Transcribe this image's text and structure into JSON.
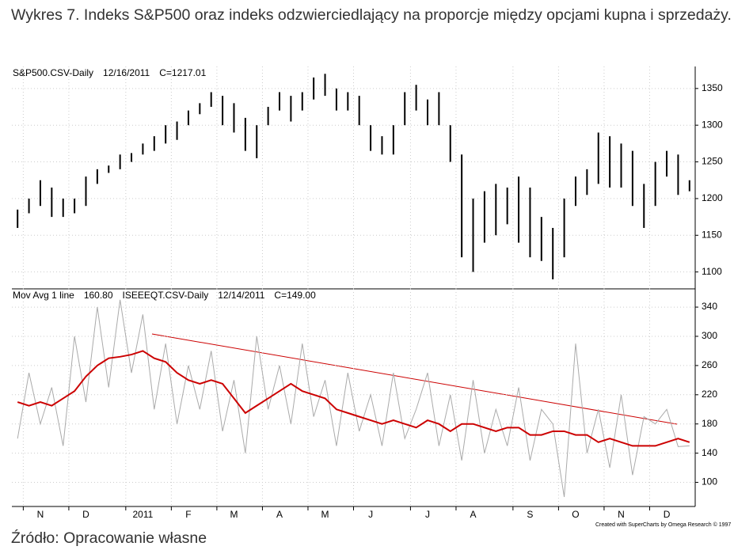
{
  "title": "Wykres 7. Indeks S&P500 oraz indeks odzwierciedlający na proporcje między opcjami kupna i sprzedaży.",
  "source": "Źródło: Opracowanie własne",
  "credit": "Created with SuperCharts by Omega Research © 1997",
  "chart_data": [
    {
      "type": "hilo",
      "label": "S&P500.CSV-Daily",
      "date": "12/16/2011",
      "last": "C=1217.01",
      "color": "#000000",
      "high": [
        1185,
        1200,
        1225,
        1215,
        1200,
        1200,
        1230,
        1240,
        1245,
        1260,
        1262,
        1275,
        1285,
        1300,
        1305,
        1320,
        1330,
        1345,
        1340,
        1330,
        1310,
        1300,
        1325,
        1345,
        1340,
        1345,
        1365,
        1370,
        1350,
        1345,
        1340,
        1300,
        1285,
        1300,
        1345,
        1355,
        1335,
        1345,
        1300,
        1260,
        1200,
        1210,
        1220,
        1215,
        1230,
        1215,
        1175,
        1160,
        1200,
        1230,
        1240,
        1290,
        1285,
        1275,
        1265,
        1220,
        1250,
        1265,
        1260,
        1225
      ],
      "low": [
        1160,
        1180,
        1190,
        1175,
        1175,
        1180,
        1190,
        1220,
        1235,
        1240,
        1250,
        1260,
        1265,
        1275,
        1280,
        1300,
        1315,
        1325,
        1300,
        1290,
        1265,
        1255,
        1300,
        1320,
        1305,
        1320,
        1335,
        1340,
        1320,
        1320,
        1300,
        1265,
        1260,
        1260,
        1300,
        1320,
        1300,
        1300,
        1250,
        1120,
        1100,
        1140,
        1150,
        1165,
        1140,
        1120,
        1115,
        1090,
        1120,
        1190,
        1205,
        1220,
        1215,
        1215,
        1190,
        1160,
        1190,
        1230,
        1205,
        1210
      ],
      "ylim": [
        1077,
        1380
      ],
      "yticks": [
        1100,
        1150,
        1200,
        1250,
        1300,
        1350
      ],
      "grid": true
    },
    {
      "type": "line",
      "label": "ISEEEQT.CSV-Daily",
      "date": "12/14/2011",
      "last": "C=149.00",
      "ma_label": "Mov Avg 1 line",
      "ma_last": "160.80",
      "categories": [
        null,
        null,
        "N",
        null,
        null,
        null,
        "D",
        null,
        null,
        null,
        null,
        "2011",
        null,
        null,
        null,
        "F",
        null,
        null,
        null,
        "M",
        null,
        null,
        null,
        "A",
        null,
        null,
        null,
        "M",
        null,
        null,
        null,
        "J",
        null,
        null,
        null,
        null,
        "J",
        null,
        null,
        null,
        "A",
        null,
        null,
        null,
        null,
        "S",
        null,
        null,
        null,
        "O",
        null,
        null,
        null,
        "N",
        null,
        null,
        null,
        "D",
        null,
        null
      ],
      "series": [
        {
          "name": "ISEEEQT.CSV-Daily",
          "color": "#aaaaaa",
          "values": [
            160,
            250,
            180,
            230,
            150,
            300,
            210,
            340,
            230,
            350,
            250,
            330,
            200,
            290,
            180,
            260,
            200,
            280,
            170,
            240,
            140,
            300,
            200,
            260,
            180,
            290,
            190,
            240,
            150,
            250,
            170,
            220,
            150,
            250,
            160,
            200,
            250,
            150,
            220,
            130,
            240,
            140,
            200,
            150,
            230,
            130,
            200,
            180,
            80,
            290,
            140,
            200,
            120,
            220,
            110,
            190,
            180,
            200,
            149,
            150
          ]
        },
        {
          "name": "Mov Avg 1 line",
          "color": "#cc0000",
          "values": [
            210,
            205,
            210,
            205,
            215,
            225,
            245,
            260,
            270,
            272,
            275,
            280,
            270,
            265,
            250,
            240,
            235,
            240,
            235,
            215,
            195,
            205,
            215,
            225,
            235,
            225,
            220,
            215,
            200,
            195,
            190,
            185,
            180,
            185,
            180,
            175,
            185,
            180,
            170,
            180,
            180,
            175,
            170,
            175,
            175,
            165,
            165,
            170,
            170,
            165,
            165,
            155,
            160,
            155,
            150,
            150,
            150,
            155,
            160,
            155
          ]
        }
      ],
      "ylim": [
        67,
        365
      ],
      "yticks": [
        100,
        140,
        180,
        220,
        260,
        300,
        340
      ],
      "grid": true
    }
  ]
}
